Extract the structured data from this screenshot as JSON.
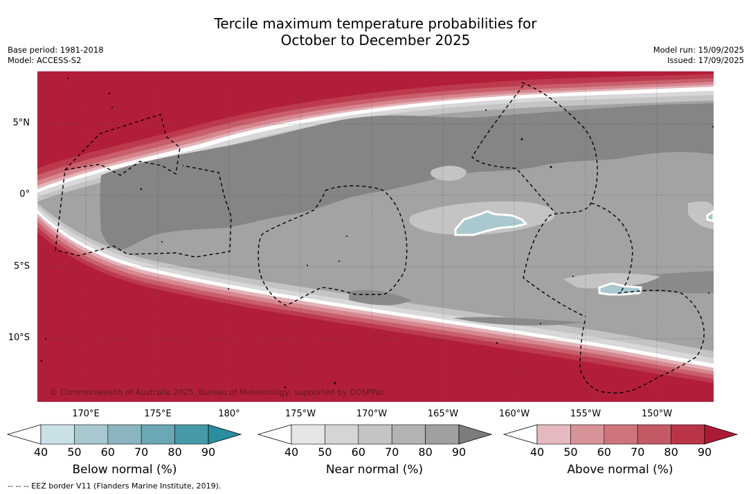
{
  "title": {
    "line1": "Tercile maximum temperature probabilities for",
    "line2": "October to December 2025"
  },
  "meta_left": {
    "base_period": "Base period: 1981-2018",
    "model": "Model: ACCESS-S2"
  },
  "meta_right": {
    "model_run": "Model run: 15/09/2025",
    "issued": "Issued: 17/09/2025"
  },
  "map": {
    "copyright": "© Commonwealth of Australia 2025, Bureau of Meteorology, supported by COSPPac",
    "lat_labels": [
      "5°N",
      "0°",
      "5°S",
      "10°S"
    ],
    "lon_labels": [
      "170°E",
      "175°E",
      "180°",
      "175°W",
      "170°W",
      "165°W",
      "160°W",
      "155°W",
      "150°W"
    ],
    "colors": {
      "ocean_above_high": "#b21e3a",
      "near_normal_dark": "#858585",
      "near_normal_mid": "#a3a3a3",
      "below_normal_patch": "#a9c8cf"
    }
  },
  "colorbars": [
    {
      "label": "Below normal (%)",
      "ticks": [
        "40",
        "50",
        "60",
        "70",
        "80",
        "90"
      ],
      "colors": [
        "#ffffff",
        "#c9e0e6",
        "#a8c8cf",
        "#8bb5c0",
        "#6aa8b5",
        "#4699a9",
        "#2a8ea0"
      ]
    },
    {
      "label": "Near normal (%)",
      "ticks": [
        "40",
        "50",
        "60",
        "70",
        "80",
        "90"
      ],
      "colors": [
        "#ffffff",
        "#e6e6e6",
        "#d5d5d5",
        "#c4c4c4",
        "#b3b3b3",
        "#a0a0a0",
        "#7d7d7d"
      ]
    },
    {
      "label": "Above normal (%)",
      "ticks": [
        "40",
        "50",
        "60",
        "70",
        "80",
        "90"
      ],
      "colors": [
        "#ffffff",
        "#e5b9bf",
        "#d89399",
        "#cf747d",
        "#c55a67",
        "#ba3448",
        "#ad1a33"
      ]
    }
  ],
  "footnote": "--  --  -- EEZ border V11 (Flanders Marine Institute, 2019)."
}
